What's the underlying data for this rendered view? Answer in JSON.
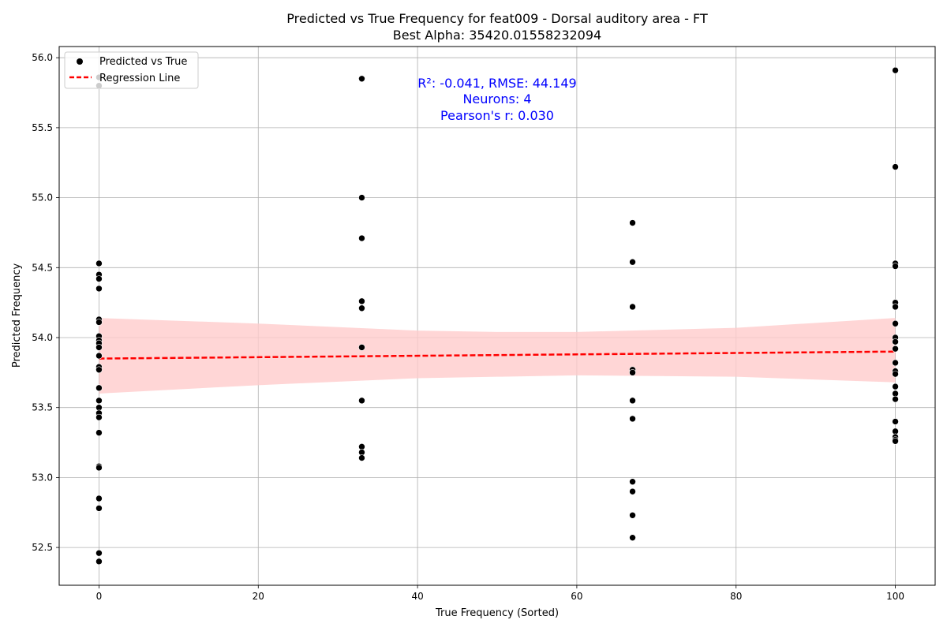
{
  "chart_data": {
    "type": "scatter",
    "title": "Predicted vs True Frequency for feat009 - Dorsal auditory area - FT",
    "subtitle": "Best Alpha: 35420.01558232094",
    "xlabel": "True Frequency (Sorted)",
    "ylabel": "Predicted Frequency",
    "xlim": [
      -5,
      105
    ],
    "ylim": [
      52.23,
      56.08
    ],
    "xticks": [
      0,
      20,
      40,
      60,
      80,
      100
    ],
    "yticks": [
      52.5,
      53.0,
      53.5,
      54.0,
      54.5,
      55.0,
      55.5,
      56.0
    ],
    "xtick_labels": [
      "0",
      "20",
      "40",
      "60",
      "80",
      "100"
    ],
    "ytick_labels": [
      "52.5",
      "53.0",
      "53.5",
      "54.0",
      "54.5",
      "55.0",
      "55.5",
      "56.0"
    ],
    "grid": true,
    "legend": {
      "placement": "top-left",
      "entries": [
        "Predicted vs True",
        "Regression Line"
      ]
    },
    "annotation": {
      "lines": [
        "R²: -0.041, RMSE: 44.149",
        "Neurons: 4",
        "Pearson's r: 0.030"
      ],
      "color": "#0000ff"
    },
    "series": [
      {
        "name": "Predicted vs True",
        "color": "#000000",
        "points": [
          [
            0,
            55.86
          ],
          [
            0,
            55.8
          ],
          [
            0,
            54.53
          ],
          [
            0,
            54.45
          ],
          [
            0,
            54.42
          ],
          [
            0,
            54.35
          ],
          [
            0,
            54.13
          ],
          [
            0,
            54.11
          ],
          [
            0,
            54.01
          ],
          [
            0,
            53.98
          ],
          [
            0,
            53.96
          ],
          [
            0,
            53.93
          ],
          [
            0,
            53.87
          ],
          [
            0,
            53.79
          ],
          [
            0,
            53.77
          ],
          [
            0,
            53.64
          ],
          [
            0,
            53.55
          ],
          [
            0,
            53.5
          ],
          [
            0,
            53.46
          ],
          [
            0,
            53.43
          ],
          [
            0,
            53.32
          ],
          [
            0,
            53.08
          ],
          [
            0,
            53.07
          ],
          [
            0,
            52.85
          ],
          [
            0,
            52.78
          ],
          [
            0,
            52.46
          ],
          [
            0,
            52.4
          ],
          [
            33,
            55.85
          ],
          [
            33,
            55.0
          ],
          [
            33,
            54.71
          ],
          [
            33,
            54.26
          ],
          [
            33,
            54.21
          ],
          [
            33,
            53.93
          ],
          [
            33,
            53.55
          ],
          [
            33,
            53.22
          ],
          [
            33,
            53.18
          ],
          [
            33,
            53.14
          ],
          [
            67,
            54.82
          ],
          [
            67,
            54.54
          ],
          [
            67,
            54.22
          ],
          [
            67,
            53.77
          ],
          [
            67,
            53.75
          ],
          [
            67,
            53.55
          ],
          [
            67,
            53.42
          ],
          [
            67,
            52.97
          ],
          [
            67,
            52.9
          ],
          [
            67,
            52.73
          ],
          [
            67,
            52.57
          ],
          [
            100,
            55.91
          ],
          [
            100,
            55.22
          ],
          [
            100,
            54.53
          ],
          [
            100,
            54.51
          ],
          [
            100,
            54.25
          ],
          [
            100,
            54.22
          ],
          [
            100,
            54.1
          ],
          [
            100,
            54.0
          ],
          [
            100,
            53.97
          ],
          [
            100,
            53.92
          ],
          [
            100,
            53.82
          ],
          [
            100,
            53.76
          ],
          [
            100,
            53.74
          ],
          [
            100,
            53.65
          ],
          [
            100,
            53.6
          ],
          [
            100,
            53.56
          ],
          [
            100,
            53.4
          ],
          [
            100,
            53.33
          ],
          [
            100,
            53.29
          ],
          [
            100,
            53.27
          ],
          [
            100,
            53.26
          ]
        ]
      },
      {
        "name": "Regression Line",
        "color": "#ff0000",
        "line": [
          [
            0,
            53.85
          ],
          [
            100,
            53.9
          ]
        ],
        "ci_color": "#ffcccc",
        "ci": [
          [
            0,
            53.6,
            54.14
          ],
          [
            20,
            53.66,
            54.1
          ],
          [
            40,
            53.71,
            54.05
          ],
          [
            50,
            53.72,
            54.04
          ],
          [
            60,
            53.73,
            54.04
          ],
          [
            80,
            53.72,
            54.07
          ],
          [
            100,
            53.68,
            54.14
          ]
        ]
      }
    ]
  }
}
